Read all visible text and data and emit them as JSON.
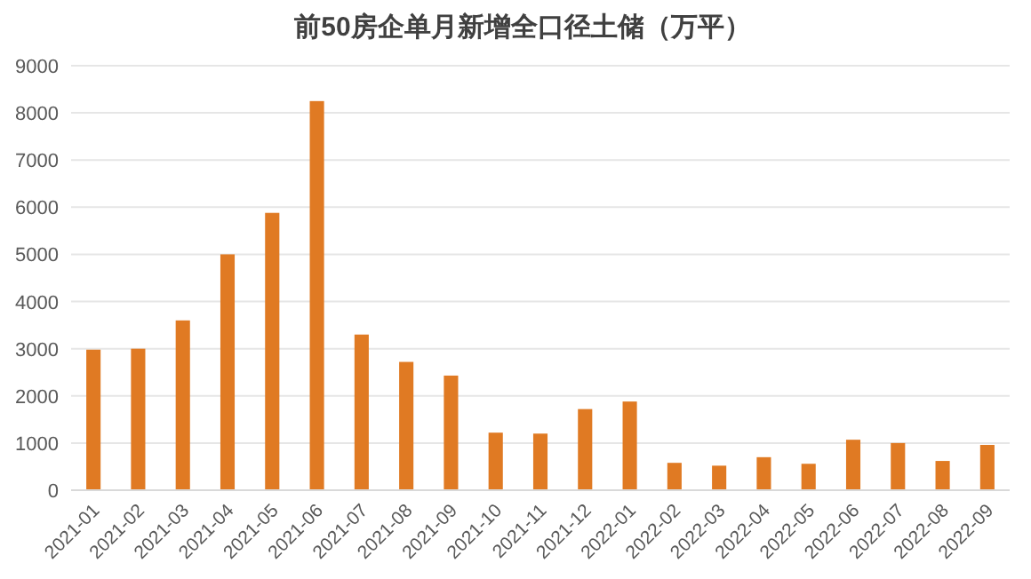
{
  "chart_data": {
    "type": "bar",
    "title": "前50房企单月新增全口径土储（万平）",
    "categories": [
      "2021-01",
      "2021-02",
      "2021-03",
      "2021-04",
      "2021-05",
      "2021-06",
      "2021-07",
      "2021-08",
      "2021-09",
      "2021-10",
      "2021-11",
      "2021-12",
      "2022-01",
      "2022-02",
      "2022-03",
      "2022-04",
      "2022-05",
      "2022-06",
      "2022-07",
      "2022-08",
      "2022-09"
    ],
    "values": [
      2980,
      3000,
      3600,
      5000,
      5880,
      8250,
      3300,
      2720,
      2430,
      1220,
      1200,
      1720,
      1880,
      580,
      520,
      700,
      560,
      1070,
      1000,
      620,
      960
    ],
    "color": "#e07a23",
    "ylim": [
      0,
      9000
    ],
    "yticks": [
      0,
      1000,
      2000,
      3000,
      4000,
      5000,
      6000,
      7000,
      8000,
      9000
    ],
    "grid": "y"
  }
}
